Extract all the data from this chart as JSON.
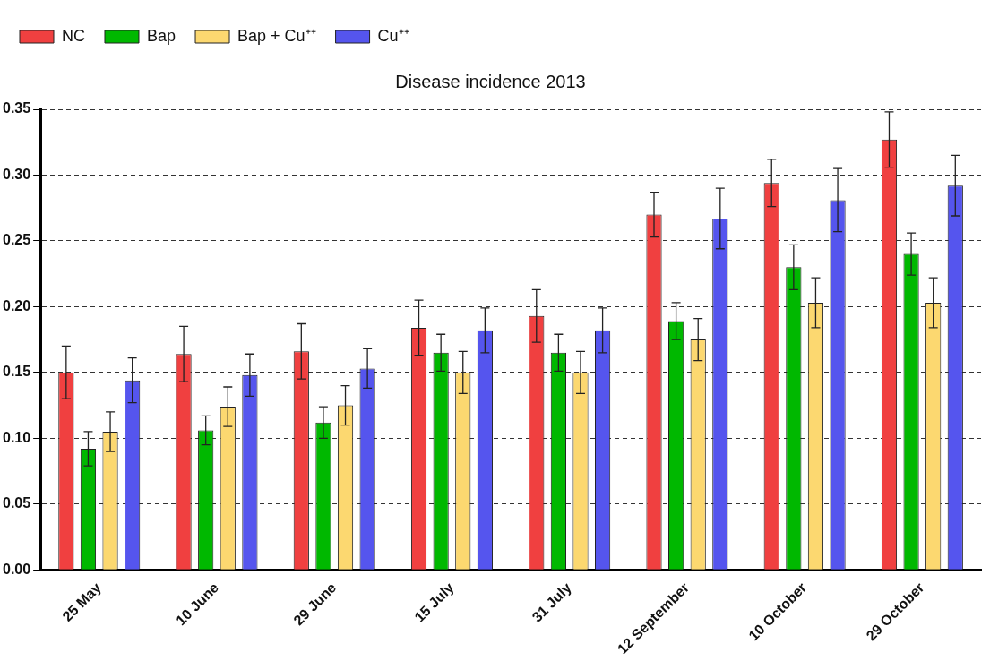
{
  "chart_data": {
    "type": "bar",
    "title": "Disease incidence 2013",
    "categories": [
      "25 May",
      "10 June",
      "29 June",
      "15 July",
      "31 July",
      "12 September",
      "10 October",
      "29 October"
    ],
    "series": [
      {
        "name": "NC",
        "color": "#f04040",
        "values": [
          0.15,
          0.164,
          0.166,
          0.184,
          0.193,
          0.27,
          0.294,
          0.327
        ],
        "errors": [
          0.02,
          0.021,
          0.021,
          0.021,
          0.02,
          0.017,
          0.018,
          0.021
        ]
      },
      {
        "name": "Bap",
        "color": "#00b800",
        "values": [
          0.092,
          0.106,
          0.112,
          0.165,
          0.165,
          0.189,
          0.23,
          0.24
        ],
        "errors": [
          0.013,
          0.011,
          0.012,
          0.014,
          0.014,
          0.014,
          0.017,
          0.016
        ]
      },
      {
        "name": "Bap + Cu⁺⁺",
        "color": "#fcd870",
        "values": [
          0.105,
          0.124,
          0.125,
          0.15,
          0.15,
          0.175,
          0.203,
          0.203
        ],
        "errors": [
          0.015,
          0.015,
          0.015,
          0.016,
          0.016,
          0.016,
          0.019,
          0.019
        ]
      },
      {
        "name": "Cu⁺⁺",
        "color": "#5555ee",
        "values": [
          0.144,
          0.148,
          0.153,
          0.182,
          0.182,
          0.267,
          0.281,
          0.292
        ],
        "errors": [
          0.017,
          0.016,
          0.015,
          0.017,
          0.017,
          0.023,
          0.024,
          0.023
        ]
      }
    ],
    "ylim": [
      0,
      0.35
    ],
    "yticks": [
      {
        "value": 0,
        "label": "0.00"
      },
      0.05,
      {
        "value": 0.1,
        "label": "0.10"
      },
      0.15,
      {
        "value": 0.2,
        "label": "0.20"
      },
      0.25,
      {
        "value": 0.3,
        "label": "0.30"
      },
      0.35
    ],
    "grid": "y",
    "legend": "top left"
  }
}
